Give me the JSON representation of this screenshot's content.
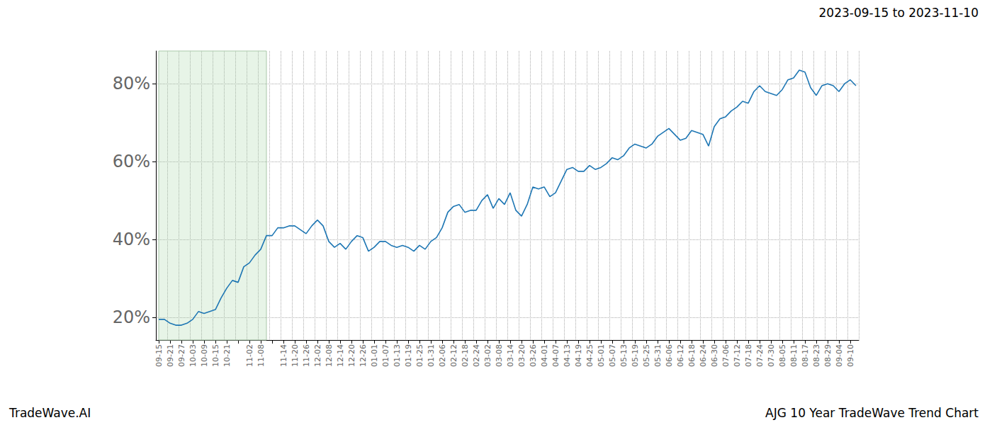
{
  "chart_data": {
    "type": "line",
    "title": "2023-09-15 to 2023-11-10",
    "annotations": [
      "TradeWave.AI",
      "AJG 10 Year TradeWave Trend Chart"
    ],
    "categories": [
      "09-15",
      null,
      "09-21",
      null,
      "09-27",
      null,
      "10-03",
      null,
      "10-09",
      null,
      "10-15",
      null,
      "10-21",
      null,
      null,
      null,
      "11-02",
      null,
      "11-08",
      null,
      null,
      null,
      "11-14",
      null,
      "11-20",
      null,
      "11-26",
      null,
      "12-02",
      null,
      "12-08",
      null,
      "12-14",
      null,
      "12-20",
      null,
      "12-26",
      null,
      "01-01",
      null,
      "01-07",
      null,
      "01-13",
      null,
      "01-19",
      null,
      "01-25",
      null,
      "01-31",
      null,
      "02-06",
      null,
      "02-12",
      null,
      "02-18",
      null,
      "02-24",
      null,
      "03-02",
      null,
      "03-08",
      null,
      "03-14",
      null,
      "03-20",
      null,
      "03-26",
      null,
      "04-01",
      null,
      "04-07",
      null,
      "04-13",
      null,
      "04-19",
      null,
      "04-25",
      null,
      "05-01",
      null,
      "05-07",
      null,
      "05-13",
      null,
      "05-19",
      null,
      "05-25",
      null,
      "05-31",
      null,
      "06-06",
      null,
      "06-12",
      null,
      "06-18",
      null,
      "06-24",
      null,
      "06-30",
      null,
      "07-06",
      null,
      "07-12",
      null,
      "07-18",
      null,
      "07-24",
      null,
      "07-30",
      null,
      "08-05",
      null,
      "08-11",
      null,
      "08-17",
      null,
      "08-23",
      null,
      "08-29",
      null,
      "09-04",
      null,
      "09-10",
      null
    ],
    "values": [
      19.5,
      19.5,
      18.5,
      18,
      18,
      18.5,
      19.5,
      21.5,
      21,
      21.5,
      22,
      25,
      27.5,
      29.5,
      29,
      33,
      34,
      36,
      37.5,
      41,
      41,
      43,
      43,
      43.5,
      43.5,
      42.5,
      41.5,
      43.5,
      45,
      43.5,
      39.5,
      38,
      39,
      37.5,
      39.5,
      41,
      40.5,
      37,
      38,
      39.5,
      39.5,
      38.5,
      38,
      38.5,
      38,
      37,
      38.5,
      37.5,
      39.5,
      40.5,
      43,
      47,
      48.5,
      49,
      47,
      47.5,
      47.5,
      50,
      51.5,
      48,
      50.5,
      49,
      52,
      47.5,
      46,
      49,
      53.5,
      53,
      53.5,
      51,
      52,
      55,
      58,
      58.5,
      57.5,
      57.5,
      59,
      58,
      58.5,
      59.5,
      61,
      60.5,
      61.5,
      63.5,
      64.5,
      64,
      63.5,
      64.5,
      66.5,
      67.5,
      68.5,
      67,
      65.5,
      66,
      68,
      67.5,
      67,
      64,
      69,
      71,
      71.5,
      73,
      74,
      75.5,
      75,
      78,
      79.5,
      78,
      77.5,
      77,
      78.5,
      81,
      81.5,
      83.5,
      83,
      79,
      77,
      79.5,
      80,
      79.5,
      78,
      80,
      81,
      79.5
    ],
    "color": "#1f77b4",
    "shaded_range": [
      0,
      19
    ],
    "ylim": [
      14.2,
      88.4
    ],
    "yticks": [
      {
        "value": 20,
        "label": "20%"
      },
      {
        "value": 40,
        "label": "40%"
      },
      {
        "value": 60,
        "label": "60%"
      },
      {
        "value": 80,
        "label": "80%"
      }
    ],
    "grid": true
  }
}
